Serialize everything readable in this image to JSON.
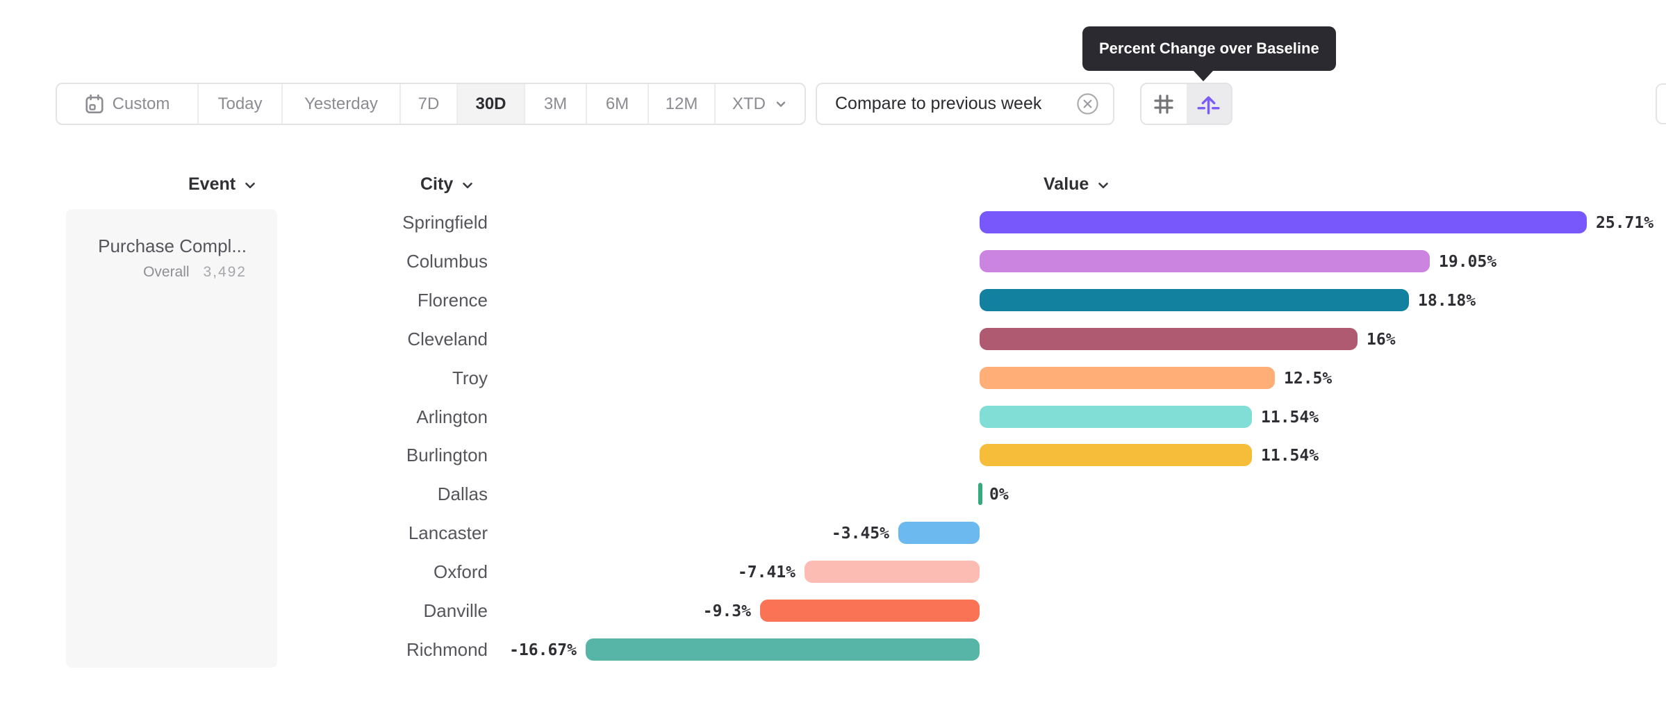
{
  "tooltip": {
    "text": "Percent Change over Baseline"
  },
  "toolbar": {
    "date_ranges": [
      {
        "label": "Custom",
        "icon": "calendar-icon",
        "selected": false
      },
      {
        "label": "Today",
        "selected": false
      },
      {
        "label": "Yesterday",
        "selected": false
      },
      {
        "label": "7D",
        "selected": false
      },
      {
        "label": "30D",
        "selected": true
      },
      {
        "label": "3M",
        "selected": false
      },
      {
        "label": "6M",
        "selected": false
      },
      {
        "label": "12M",
        "selected": false
      },
      {
        "label": "XTD",
        "selected": false,
        "has_chevron": true
      }
    ],
    "compare_button": {
      "label": "Compare to previous week",
      "icon": "close-circle-icon"
    },
    "view_toggle": {
      "buttons": [
        {
          "name": "absolute-numbers",
          "icon": "hash-icon",
          "selected": false
        },
        {
          "name": "percent-change-over-baseline",
          "icon": "baseline-arrow-icon",
          "selected": true
        }
      ],
      "accent_color": "#7b5cf8"
    }
  },
  "columns": {
    "event": {
      "label": "Event"
    },
    "city": {
      "label": "City"
    },
    "value": {
      "label": "Value"
    }
  },
  "event_panel": {
    "title": "Purchase Compl...",
    "overall_label": "Overall",
    "overall_value": "3,492"
  },
  "chart_data": {
    "type": "bar",
    "orientation": "horizontal",
    "unit": "%",
    "series_name": "Percent Change over Baseline",
    "categories": [
      "Springfield",
      "Columbus",
      "Florence",
      "Cleveland",
      "Troy",
      "Arlington",
      "Burlington",
      "Dallas",
      "Lancaster",
      "Oxford",
      "Danville",
      "Richmond"
    ],
    "values": [
      25.71,
      19.05,
      18.18,
      16,
      12.5,
      11.54,
      11.54,
      0,
      -3.45,
      -7.41,
      -9.3,
      -16.67
    ],
    "labels": [
      "25.71%",
      "19.05%",
      "18.18%",
      "16%",
      "12.5%",
      "11.54%",
      "11.54%",
      "0%",
      "-3.45%",
      "-7.41%",
      "-9.3%",
      "-16.67%"
    ],
    "colors": [
      "#7857fb",
      "#cb84e0",
      "#12809f",
      "#b05a71",
      "#ffae78",
      "#80ded6",
      "#f6bd3b",
      "#35aa7c",
      "#6cb9f0",
      "#fcbcb4",
      "#fb7355",
      "#57b5a8"
    ],
    "baseline": 0,
    "xlim": [
      -17,
      26
    ],
    "gridlines": false,
    "value_labels_shown": true,
    "zero_tick_color": "#35aa7c"
  }
}
